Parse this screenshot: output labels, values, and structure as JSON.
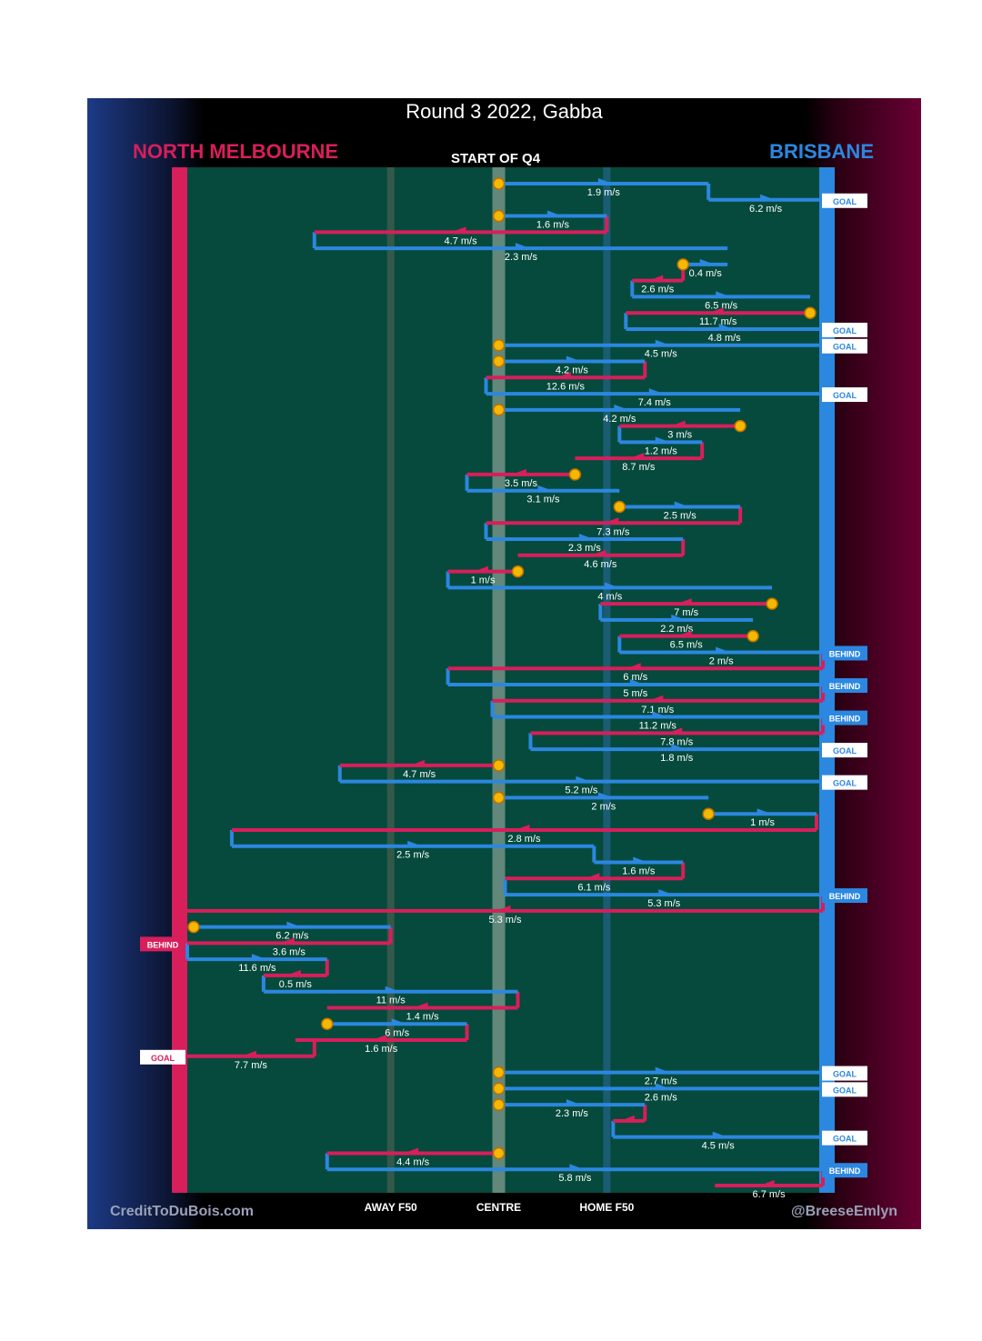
{
  "title": "Round 3 2022, Gabba",
  "teams": {
    "left": "NORTH MELBOURNE",
    "right": "BRISBANE"
  },
  "start_label": "START OF Q4",
  "credits": {
    "left": "CreditToDuBois.com",
    "right": "@BreeseEmlyn"
  },
  "colors": {
    "north": "#d81e5b",
    "brisbane": "#2b87e0",
    "field": "#054a3c",
    "marker": "#f5b800"
  },
  "chart_data": {
    "type": "flow",
    "title": "Round 3 2022, Gabba",
    "x_axis": {
      "range": [
        0,
        100
      ],
      "note": "0 = North Melbourne goal line, 100 = Brisbane goal line",
      "ticks": [
        {
          "x": 32,
          "label": "AWAY F50"
        },
        {
          "x": 49,
          "label": "CENTRE"
        },
        {
          "x": 66,
          "label": "HOME F50"
        }
      ]
    },
    "chains": [
      {
        "team": "brisbane",
        "from": 49,
        "to": 82,
        "speed": "1.9 m/s",
        "start": "centre"
      },
      {
        "team": "brisbane",
        "from": 82,
        "to": 100,
        "speed": "6.2 m/s",
        "result": "GOAL"
      },
      {
        "team": "brisbane",
        "from": 49,
        "to": 66,
        "speed": "1.6 m/s",
        "start": "centre"
      },
      {
        "team": "north",
        "from": 66,
        "to": 20,
        "speed": "4.7 m/s"
      },
      {
        "team": "brisbane",
        "from": 20,
        "to": 85,
        "speed": "2.3 m/s"
      },
      {
        "team": "brisbane",
        "from": 78,
        "to": 85,
        "speed": "0.4 m/s",
        "start": "stoppage"
      },
      {
        "team": "north",
        "from": 78,
        "to": 70,
        "speed": "2.6 m/s"
      },
      {
        "team": "brisbane",
        "from": 70,
        "to": 98,
        "speed": "6.5 m/s"
      },
      {
        "team": "north",
        "from": 98,
        "to": 69,
        "speed": "11.7 m/s",
        "start": "stoppage"
      },
      {
        "team": "brisbane",
        "from": 69,
        "to": 100,
        "speed": "4.8 m/s",
        "result": "GOAL"
      },
      {
        "team": "brisbane",
        "from": 49,
        "to": 100,
        "speed": "4.5 m/s",
        "start": "centre",
        "result": "GOAL"
      },
      {
        "team": "brisbane",
        "from": 49,
        "to": 72,
        "speed": "4.2 m/s",
        "start": "centre"
      },
      {
        "team": "north",
        "from": 72,
        "to": 47,
        "speed": "12.6 m/s"
      },
      {
        "team": "brisbane",
        "from": 47,
        "to": 100,
        "speed": "7.4 m/s",
        "result": "GOAL"
      },
      {
        "team": "brisbane",
        "from": 49,
        "to": 87,
        "speed": "4.2 m/s",
        "start": "centre"
      },
      {
        "team": "north",
        "from": 87,
        "to": 68,
        "speed": "3 m/s",
        "start": "stoppage"
      },
      {
        "team": "brisbane",
        "from": 68,
        "to": 81,
        "speed": "1.2 m/s"
      },
      {
        "team": "north",
        "from": 81,
        "to": 61,
        "speed": "8.7 m/s"
      },
      {
        "team": "north",
        "from": 61,
        "to": 44,
        "speed": "3.5 m/s",
        "start": "stoppage"
      },
      {
        "team": "brisbane",
        "from": 44,
        "to": 68,
        "speed": "3.1 m/s"
      },
      {
        "team": "brisbane",
        "from": 68,
        "to": 87,
        "speed": "2.5 m/s",
        "start": "stoppage"
      },
      {
        "team": "north",
        "from": 87,
        "to": 47,
        "speed": "7.3 m/s"
      },
      {
        "team": "brisbane",
        "from": 47,
        "to": 78,
        "speed": "2.3 m/s"
      },
      {
        "team": "north",
        "from": 78,
        "to": 52,
        "speed": "4.6 m/s"
      },
      {
        "team": "north",
        "from": 52,
        "to": 41,
        "speed": "1 m/s",
        "start": "stoppage"
      },
      {
        "team": "brisbane",
        "from": 41,
        "to": 92,
        "speed": "4 m/s"
      },
      {
        "team": "north",
        "from": 92,
        "to": 65,
        "speed": "7 m/s",
        "start": "stoppage"
      },
      {
        "team": "brisbane",
        "from": 65,
        "to": 89,
        "speed": "2.2 m/s"
      },
      {
        "team": "north",
        "from": 89,
        "to": 68,
        "speed": "6.5 m/s",
        "start": "stoppage"
      },
      {
        "team": "brisbane",
        "from": 68,
        "to": 100,
        "speed": "2 m/s",
        "result": "BEHIND"
      },
      {
        "team": "north",
        "from": 100,
        "to": 41,
        "speed": "6 m/s"
      },
      {
        "team": "brisbane",
        "from": 41,
        "to": 100,
        "speed": "5 m/s",
        "result": "BEHIND"
      },
      {
        "team": "north",
        "from": 100,
        "to": 48,
        "speed": "7.1 m/s"
      },
      {
        "team": "brisbane",
        "from": 48,
        "to": 100,
        "speed": "11.2 m/s",
        "result": "BEHIND"
      },
      {
        "team": "north",
        "from": 100,
        "to": 54,
        "speed": "7.8 m/s"
      },
      {
        "team": "brisbane",
        "from": 54,
        "to": 100,
        "speed": "1.8 m/s",
        "result": "GOAL"
      },
      {
        "team": "north",
        "from": 49,
        "to": 24,
        "speed": "4.7 m/s",
        "start": "centre"
      },
      {
        "team": "brisbane",
        "from": 24,
        "to": 100,
        "speed": "5.2 m/s",
        "result": "GOAL"
      },
      {
        "team": "brisbane",
        "from": 49,
        "to": 82,
        "speed": "2 m/s",
        "start": "centre"
      },
      {
        "team": "brisbane",
        "from": 82,
        "to": 99,
        "speed": "1 m/s",
        "start": "stoppage"
      },
      {
        "team": "north",
        "from": 99,
        "to": 7,
        "speed": "2.8 m/s"
      },
      {
        "team": "brisbane",
        "from": 7,
        "to": 64,
        "speed": "2.5 m/s"
      },
      {
        "team": "brisbane",
        "from": 64,
        "to": 78,
        "speed": "1.6 m/s"
      },
      {
        "team": "north",
        "from": 78,
        "to": 50,
        "speed": "6.1 m/s"
      },
      {
        "team": "brisbane",
        "from": 50,
        "to": 100,
        "speed": "5.3 m/s",
        "result": "BEHIND"
      },
      {
        "team": "north",
        "from": 100,
        "to": 0,
        "speed": "5.3 m/s"
      },
      {
        "team": "brisbane",
        "from": 1,
        "to": 32,
        "speed": "6.2 m/s",
        "start": "stoppage"
      },
      {
        "team": "north",
        "from": 32,
        "to": 0,
        "speed": "3.6 m/s",
        "result": "BEHIND"
      },
      {
        "team": "brisbane",
        "from": 0,
        "to": 22,
        "speed": "11.6 m/s"
      },
      {
        "team": "north",
        "from": 22,
        "to": 12,
        "speed": "0.5 m/s"
      },
      {
        "team": "brisbane",
        "from": 12,
        "to": 52,
        "speed": "11 m/s"
      },
      {
        "team": "north",
        "from": 52,
        "to": 22,
        "speed": "1.4 m/s"
      },
      {
        "team": "brisbane",
        "from": 22,
        "to": 44,
        "speed": "6 m/s",
        "start": "stoppage"
      },
      {
        "team": "north",
        "from": 44,
        "to": 17,
        "speed": "1.6 m/s"
      },
      {
        "team": "north",
        "from": 20,
        "to": 0,
        "speed": "7.7 m/s",
        "result": "GOAL"
      },
      {
        "team": "brisbane",
        "from": 49,
        "to": 100,
        "speed": "2.7 m/s",
        "start": "centre",
        "result": "GOAL"
      },
      {
        "team": "brisbane",
        "from": 49,
        "to": 100,
        "speed": "2.6 m/s",
        "start": "centre",
        "result": "GOAL"
      },
      {
        "team": "brisbane",
        "from": 49,
        "to": 72,
        "speed": "2.3 m/s",
        "start": "centre"
      },
      {
        "team": "north",
        "from": 72,
        "to": 67,
        "speed": ""
      },
      {
        "team": "brisbane",
        "from": 67,
        "to": 100,
        "speed": "4.5 m/s",
        "result": "GOAL"
      },
      {
        "team": "north",
        "from": 49,
        "to": 22,
        "speed": "4.4 m/s",
        "start": "centre"
      },
      {
        "team": "brisbane",
        "from": 22,
        "to": 100,
        "speed": "5.8 m/s",
        "result": "BEHIND"
      },
      {
        "team": "north",
        "from": 100,
        "to": 83,
        "speed": "6.7 m/s"
      }
    ]
  }
}
